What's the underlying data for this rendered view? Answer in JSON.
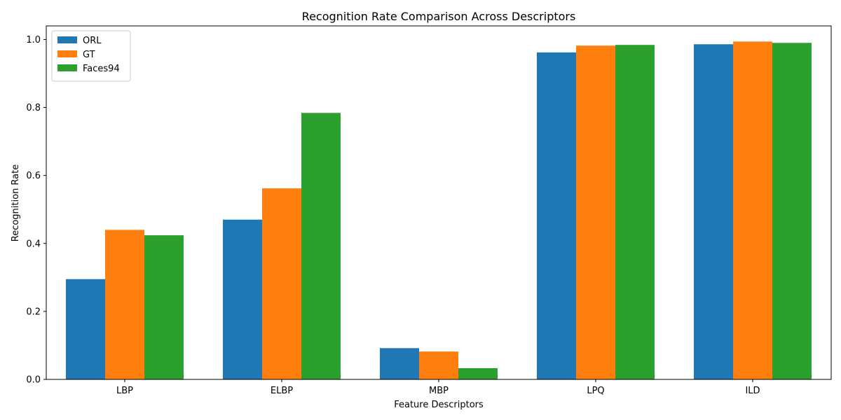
{
  "chart_data": {
    "type": "bar",
    "title": "Recognition Rate Comparison Across Descriptors",
    "xlabel": "Feature Descriptors",
    "ylabel": "Recognition Rate",
    "categories": [
      "LBP",
      "ELBP",
      "MBP",
      "LPQ",
      "ILD"
    ],
    "series": [
      {
        "name": "ORL",
        "color": "#1f77b4",
        "values": [
          0.295,
          0.47,
          0.092,
          0.962,
          0.986
        ]
      },
      {
        "name": "GT",
        "color": "#ff7f0e",
        "values": [
          0.44,
          0.562,
          0.082,
          0.982,
          0.994
        ]
      },
      {
        "name": "Faces94",
        "color": "#2ca02c",
        "values": [
          0.424,
          0.784,
          0.033,
          0.984,
          0.99
        ]
      }
    ],
    "ylim": [
      0,
      1.04
    ],
    "yticks": [
      0.0,
      0.2,
      0.4,
      0.6,
      0.8,
      1.0
    ],
    "ytick_labels": [
      "0.0",
      "0.2",
      "0.4",
      "0.6",
      "0.8",
      "1.0"
    ],
    "grid": false,
    "legend_position": "top-left"
  }
}
